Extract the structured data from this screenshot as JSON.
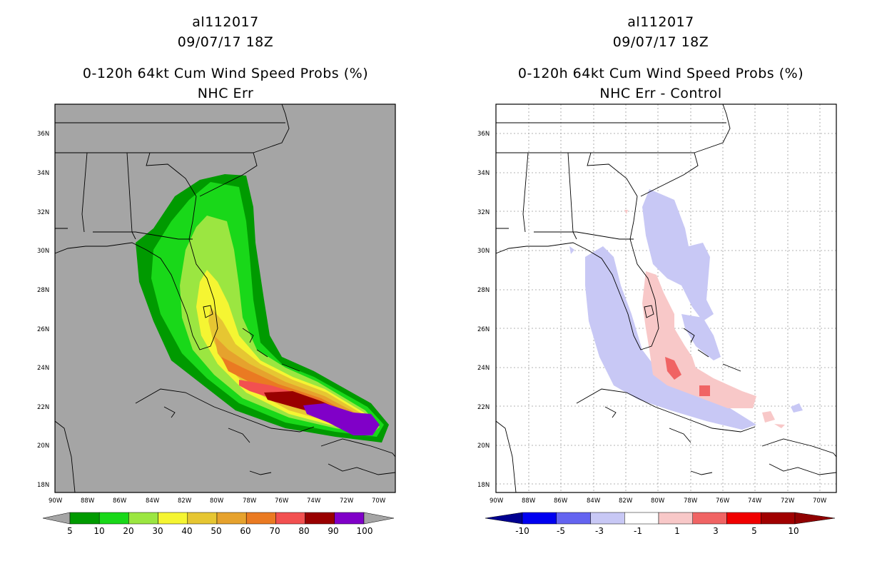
{
  "left": {
    "title1": "al112017",
    "title2": "09/07/17 18Z",
    "title3": "0-120h 64kt Cum Wind Speed Probs (%)",
    "title4": "NHC Err",
    "legend": {
      "labels": [
        "5",
        "10",
        "20",
        "30",
        "40",
        "50",
        "60",
        "70",
        "80",
        "90",
        "100"
      ],
      "colors": [
        "#009a00",
        "#19d819",
        "#9be641",
        "#f5f532",
        "#e6c632",
        "#e6a22d",
        "#ea7a22",
        "#f25050",
        "#990000",
        "#8000c8"
      ]
    }
  },
  "right": {
    "title1": "al112017",
    "title2": "09/07/17 18Z",
    "title3": "0-120h 64kt Cum Wind Speed Probs (%)",
    "title4": "NHC Err - Control",
    "legend": {
      "labels": [
        "-10",
        "-5",
        "-3",
        "-1",
        "1",
        "3",
        "5",
        "10"
      ],
      "colors": [
        "#000090",
        "#0000f0",
        "#6464f0",
        "#c8c8f5",
        "#ffffff",
        "#f8c8c8",
        "#f06464",
        "#f00000",
        "#a00000",
        "#900000"
      ]
    }
  },
  "axes": {
    "lat_labels": [
      "36N",
      "34N",
      "32N",
      "30N",
      "28N",
      "26N",
      "24N",
      "22N",
      "20N",
      "18N"
    ],
    "lon_labels": [
      "90W",
      "88W",
      "86W",
      "84W",
      "82W",
      "80W",
      "78W",
      "76W",
      "74W",
      "72W",
      "70W"
    ],
    "lat_range": [
      17.5,
      37.5
    ],
    "lon_range": [
      -90,
      -69
    ]
  }
}
